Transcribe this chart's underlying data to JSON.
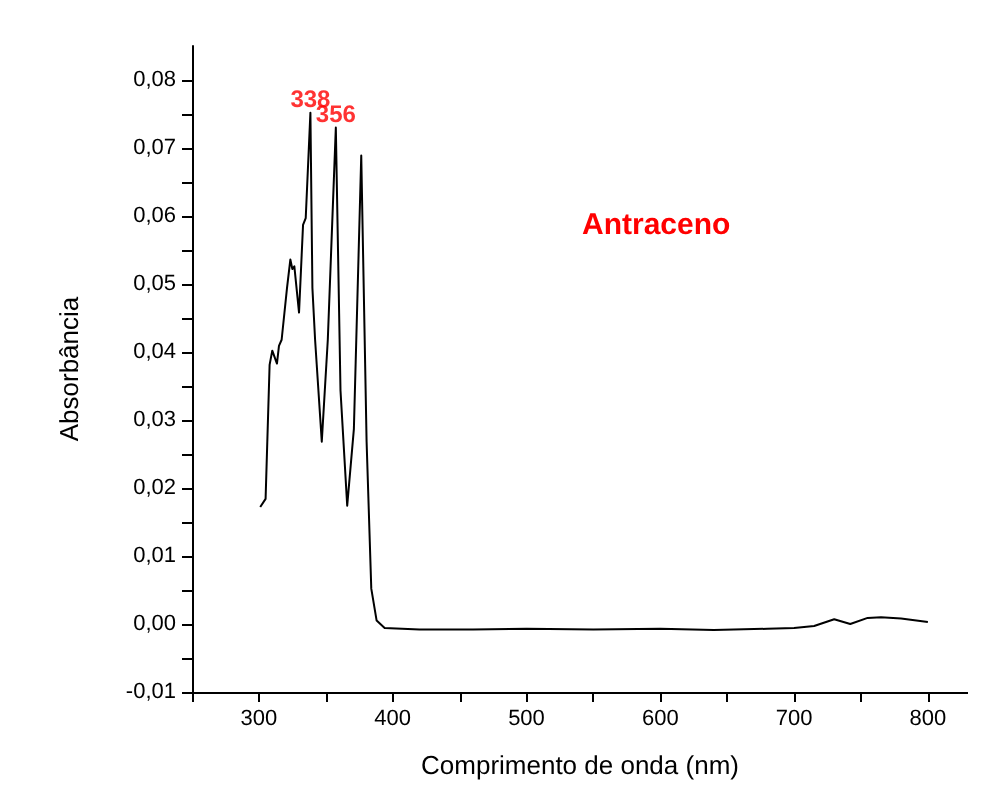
{
  "chart_data": {
    "type": "line",
    "xlabel": "Comprimento de onda (nm)",
    "ylabel": "Absorbância",
    "xlim": [
      250,
      830
    ],
    "ylim": [
      -0.01,
      0.085
    ],
    "xticks": [
      {
        "value": 250,
        "label": null
      },
      300,
      {
        "value": 350,
        "label": null
      },
      400,
      {
        "value": 450,
        "label": null
      },
      500,
      {
        "value": 550,
        "label": null
      },
      600,
      {
        "value": 650,
        "label": null
      },
      700,
      {
        "value": 750,
        "label": null
      },
      800
    ],
    "yticks": [
      {
        "value": -0.01,
        "label": "-0,01"
      },
      {
        "value": -0.005,
        "label": null
      },
      {
        "value": 0,
        "label": "0,00"
      },
      {
        "value": 0.005,
        "label": null
      },
      {
        "value": 0.01,
        "label": "0,01"
      },
      {
        "value": 0.015,
        "label": null
      },
      {
        "value": 0.02,
        "label": "0,02"
      },
      {
        "value": 0.025,
        "label": null
      },
      {
        "value": 0.03,
        "label": "0,03"
      },
      {
        "value": 0.035,
        "label": null
      },
      {
        "value": 0.04,
        "label": "0,04"
      },
      {
        "value": 0.045,
        "label": null
      },
      {
        "value": 0.05,
        "label": "0,05"
      },
      {
        "value": 0.055,
        "label": null
      },
      {
        "value": 0.06,
        "label": "0,06"
      },
      {
        "value": 0.065,
        "label": null
      },
      {
        "value": 0.07,
        "label": "0,07"
      },
      {
        "value": 0.075,
        "label": null
      },
      {
        "value": 0.08,
        "label": "0,08"
      }
    ],
    "grid": false,
    "marker": "none",
    "line_style": "solid",
    "annotations": [
      {
        "text": "338",
        "x": 338.5,
        "y": 0.0752
      },
      {
        "text": "356",
        "x": 357.5,
        "y": 0.073
      },
      "Antraceno"
    ],
    "series": [
      {
        "color": "#000000",
        "x": [
          301,
          305,
          308,
          310,
          313.5,
          315,
          317,
          321,
          323.5,
          325,
          326.5,
          330,
          333,
          335,
          338.5,
          340,
          342,
          347,
          351.5,
          357.5,
          361,
          366,
          371,
          376.5,
          380.5,
          384,
          388,
          394,
          420,
          460,
          500,
          550,
          600,
          640,
          680,
          700,
          715,
          730,
          742,
          755,
          765,
          780,
          800
        ],
        "values": [
          0.0172,
          0.0184,
          0.0381,
          0.0402,
          0.0383,
          0.0409,
          0.0418,
          0.0494,
          0.0536,
          0.0522,
          0.0526,
          0.0458,
          0.0587,
          0.0597,
          0.0752,
          0.0494,
          0.0418,
          0.0268,
          0.0418,
          0.073,
          0.0343,
          0.0174,
          0.0287,
          0.0689,
          0.0268,
          0.0052,
          0.0005,
          -0.0006,
          -0.0008,
          -0.0008,
          -0.0007,
          -0.0008,
          -0.0007,
          -0.0009,
          -0.0007,
          -0.0006,
          -0.0003,
          0.0007,
          0,
          0.0009,
          0.001,
          0.0008,
          0.0003
        ]
      }
    ]
  }
}
